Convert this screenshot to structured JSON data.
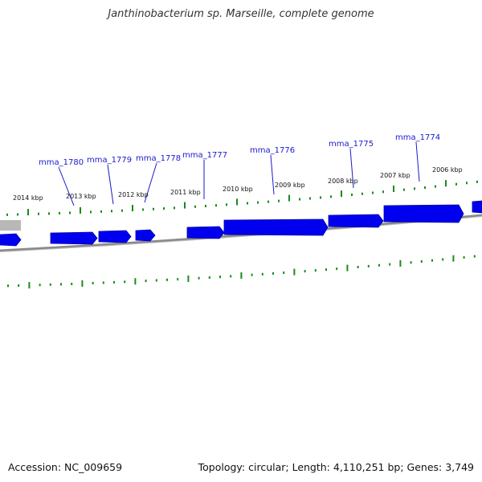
{
  "title": "Janthinobacterium sp. Marseille, complete genome",
  "footer": {
    "accession": "Accession: NC_009659",
    "topology": "Topology: circular; Length: 4,110,251 bp; Genes: 3,749"
  },
  "colors": {
    "gene_fill": "#0000ee",
    "gene_stroke": "#0000aa",
    "ticks": "#1a8a1a",
    "backbone": "#7a7a7a",
    "label_line": "#1a1acc"
  },
  "kbp_labels": [
    "2014 kbp",
    "2013 kbp",
    "2012 kbp",
    "2011 kbp",
    "2010 kbp",
    "2009 kbp",
    "2008 kbp",
    "2007 kbp",
    "2006 kbp"
  ],
  "gene_labels": [
    "mma_1780",
    "mma_1779",
    "mma_1778",
    "mma_1777",
    "mma_1776",
    "mma_1775",
    "mma_1774"
  ]
}
